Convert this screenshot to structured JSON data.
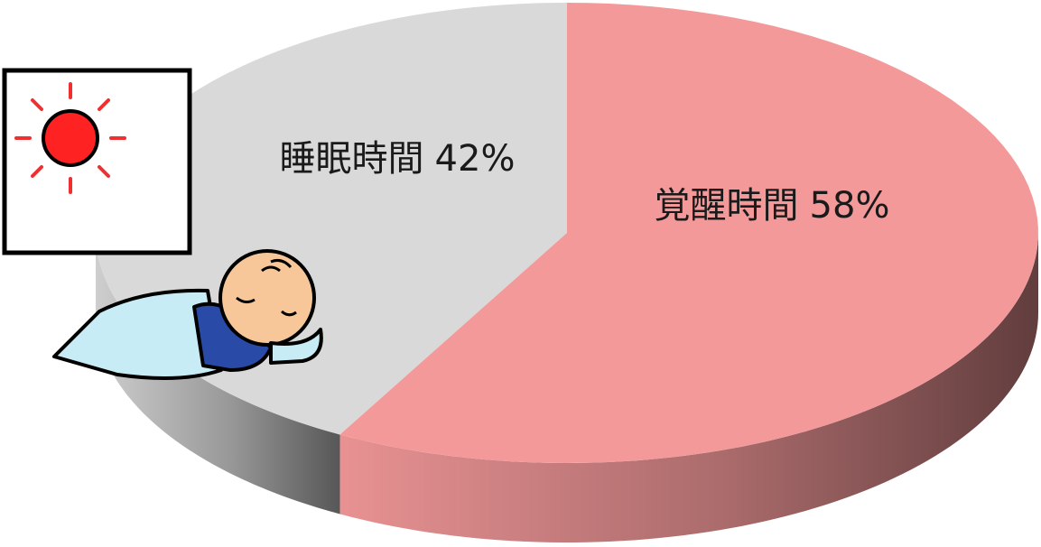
{
  "chart_data": {
    "type": "pie",
    "categories": [
      "睡眠時間",
      "覚醒時間"
    ],
    "values": [
      42,
      58
    ],
    "value_labels": [
      "42%",
      "58%"
    ],
    "colors": [
      "#d9d9d9",
      "#f4999a"
    ]
  }
}
